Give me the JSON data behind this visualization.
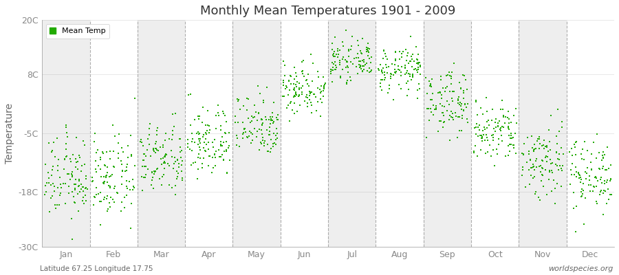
{
  "title": "Monthly Mean Temperatures 1901 - 2009",
  "ylabel": "Temperature",
  "xlabel_note": "Latitude 67.25 Longitude 17.75",
  "watermark": "worldspecies.org",
  "legend_label": "Mean Temp",
  "dot_color": "#22AA00",
  "dot_size": 2.5,
  "ylim": [
    -30,
    20
  ],
  "yticks": [
    -30,
    -18,
    -5,
    8,
    20
  ],
  "ytick_labels": [
    "-30C",
    "-18C",
    "-5C",
    "8C",
    "20C"
  ],
  "months": [
    "Jan",
    "Feb",
    "Mar",
    "Apr",
    "May",
    "Jun",
    "Jul",
    "Aug",
    "Sep",
    "Oct",
    "Nov",
    "Dec"
  ],
  "month_means": [
    -15,
    -15,
    -11,
    -7,
    -3,
    5,
    11,
    9,
    2,
    -5,
    -11,
    -14
  ],
  "month_stds": [
    4.5,
    4.5,
    4.0,
    4.0,
    3.5,
    3.0,
    2.0,
    2.5,
    3.5,
    3.5,
    4.5,
    4.0
  ],
  "n_points": 109,
  "bg_color": "#FFFFFF",
  "plot_bg_even": "#FFFFFF",
  "plot_bg_odd": "#EEEEEE",
  "grid_color": "#999999",
  "tick_color": "#888888",
  "title_color": "#333333",
  "label_color": "#666666"
}
